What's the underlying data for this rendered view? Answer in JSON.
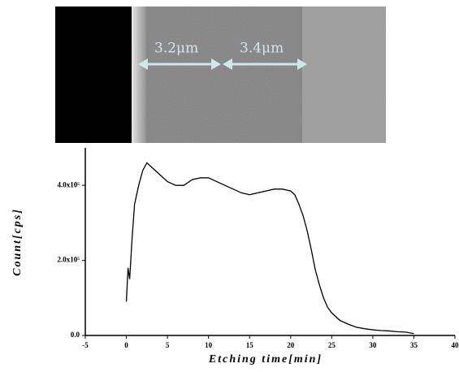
{
  "image_labels": [
    "3.2μm",
    "3.4μm"
  ],
  "chart_data": {
    "type": "line",
    "x_label": "Etching time[min]",
    "y_label": "Count[cps]",
    "x": [
      0,
      0.2,
      0.4,
      0.7,
      1,
      1.5,
      2,
      2.5,
      3,
      3.5,
      4,
      5,
      6,
      7,
      8,
      9,
      10,
      11,
      12,
      13,
      14,
      15,
      16,
      17,
      18,
      19,
      20,
      20.5,
      21,
      21.5,
      22,
      22.5,
      23,
      23.5,
      24,
      24.5,
      25,
      26,
      27,
      28,
      29,
      30,
      31,
      32,
      33,
      34,
      35
    ],
    "series": [
      {
        "name": "Count",
        "color": "#000000",
        "values": [
          90000,
          180000,
          150000,
          260000,
          350000,
          400000,
          440000,
          460000,
          450000,
          440000,
          430000,
          410000,
          400000,
          400000,
          415000,
          420000,
          420000,
          410000,
          400000,
          390000,
          380000,
          375000,
          380000,
          385000,
          390000,
          390000,
          385000,
          375000,
          350000,
          320000,
          280000,
          230000,
          175000,
          135000,
          100000,
          75000,
          60000,
          40000,
          30000,
          22000,
          18000,
          15000,
          13000,
          12000,
          10000,
          9000,
          5000
        ]
      }
    ],
    "xlim": [
      -5,
      40
    ],
    "xticks": [
      -5,
      0,
      5,
      10,
      15,
      20,
      25,
      30,
      35,
      40
    ],
    "ylim": [
      0,
      500000
    ],
    "yticks": [
      {
        "value": 0,
        "label": "0.0"
      },
      {
        "value": 200000,
        "label": "2.0x10⁵"
      },
      {
        "value": 400000,
        "label": "4.0x10⁵"
      }
    ]
  }
}
